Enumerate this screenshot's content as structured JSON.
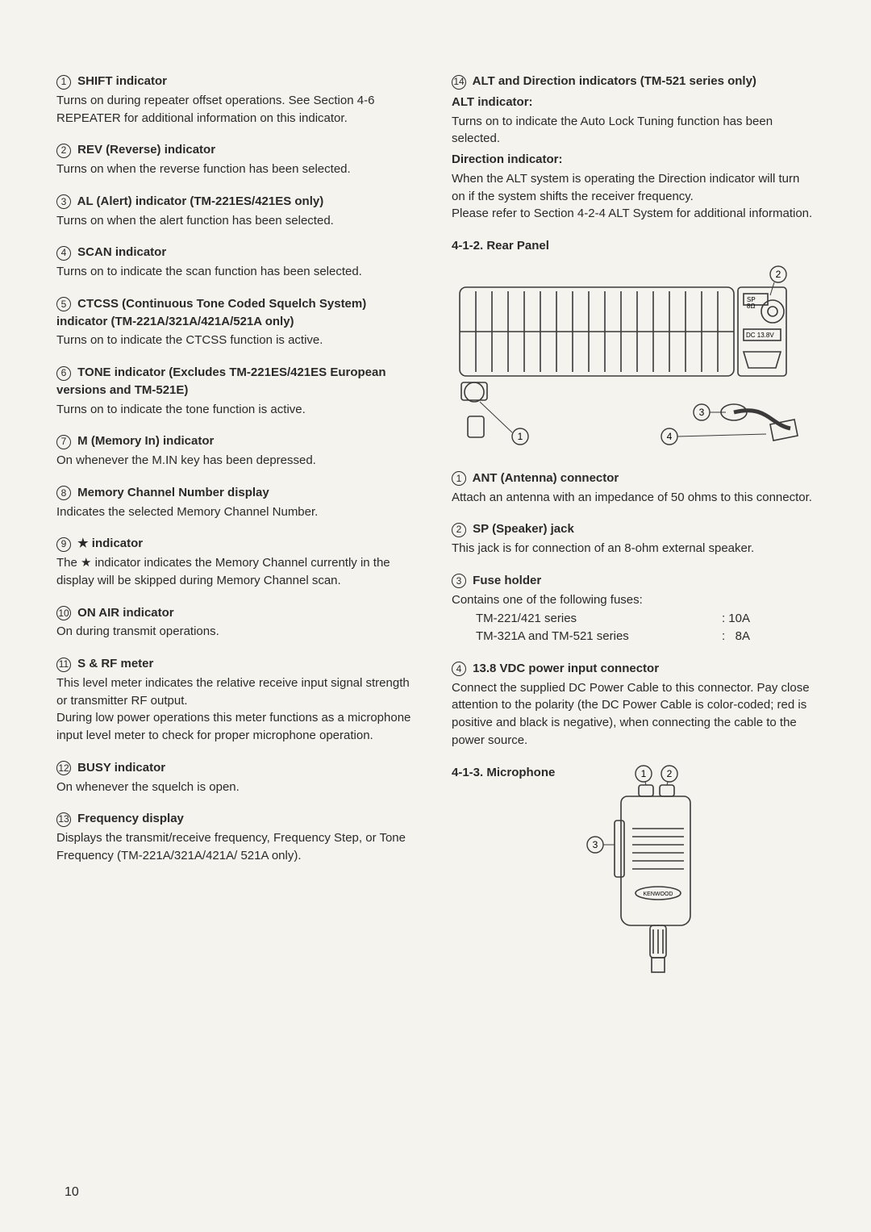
{
  "left": {
    "items": [
      {
        "num": "1",
        "title": "SHIFT indicator",
        "desc": "Turns on during repeater offset operations. See Section 4-6 REPEATER for additional information on this indicator."
      },
      {
        "num": "2",
        "title": "REV (Reverse) indicator",
        "desc": "Turns on when the reverse function has been selected."
      },
      {
        "num": "3",
        "title": "AL (Alert) indicator (TM-221ES/421ES only)",
        "desc": "Turns on when the alert function has been selected."
      },
      {
        "num": "4",
        "title": "SCAN indicator",
        "desc": "Turns on to indicate the scan function has been selected."
      },
      {
        "num": "5",
        "title": "CTCSS (Continuous Tone Coded Squelch System) indicator (TM-221A/321A/421A/521A only)",
        "desc": "Turns on to indicate the CTCSS function is active."
      },
      {
        "num": "6",
        "title": "TONE indicator (Excludes TM-221ES/421ES European versions and TM-521E)",
        "desc": "Turns on to indicate the tone function is active."
      },
      {
        "num": "7",
        "title": "M (Memory In) indicator",
        "desc": "On whenever the M.IN key has been depressed."
      },
      {
        "num": "8",
        "title": "Memory Channel Number display",
        "desc": "Indicates the selected Memory Channel Number."
      },
      {
        "num": "9",
        "title": "★ indicator",
        "desc": "The ★ indicator indicates the Memory Channel currently in the display will be skipped during Memory Channel scan."
      },
      {
        "num": "10",
        "title": "ON AIR indicator",
        "desc": "On during transmit operations."
      },
      {
        "num": "11",
        "title": "S & RF meter",
        "desc": "This level meter indicates the relative receive input signal strength or transmitter RF output.\nDuring low power operations this meter functions as a microphone input level meter to check for proper microphone operation."
      },
      {
        "num": "12",
        "title": "BUSY indicator",
        "desc": "On whenever the squelch is open."
      },
      {
        "num": "13",
        "title": "Frequency display",
        "desc": "Displays the transmit/receive frequency, Frequency Step, or Tone Frequency (TM-221A/321A/421A/ 521A only)."
      }
    ]
  },
  "right": {
    "item14": {
      "num": "14",
      "title": "ALT and Direction indicators (TM-521 series only)",
      "alt_head": "ALT indicator:",
      "alt_desc": "Turns on to indicate the Auto Lock Tuning function has been selected.",
      "dir_head": "Direction indicator:",
      "dir_desc": "When the ALT system is operating the Direction indicator will turn on if the system shifts the receiver frequency.\nPlease refer to Section 4-2-4 ALT System for additional information."
    },
    "rear": {
      "heading": "4-1-2. Rear Panel",
      "labels": {
        "sp": "SP",
        "ohm": "8Ω",
        "dc": "DC 13.8V"
      },
      "callouts": [
        "1",
        "2",
        "3",
        "4"
      ],
      "items": [
        {
          "num": "1",
          "title": "ANT (Antenna) connector",
          "desc": "Attach an antenna with an impedance of 50 ohms to this connector."
        },
        {
          "num": "2",
          "title": "SP (Speaker) jack",
          "desc": "This jack is for connection of an 8-ohm external speaker."
        },
        {
          "num": "3",
          "title": "Fuse holder",
          "desc_pre": "Contains one of the following fuses:",
          "fuses": [
            {
              "model": "TM-221/421 series",
              "rating": ": 10A"
            },
            {
              "model": "TM-321A and TM-521 series",
              "rating": ":   8A"
            }
          ]
        },
        {
          "num": "4",
          "title": "13.8 VDC power input connector",
          "desc": "Connect the supplied DC Power Cable to this connector. Pay close attention to the polarity (the DC Power Cable is color-coded; red is positive and black is negative), when connecting the cable to the power source."
        }
      ]
    },
    "mic": {
      "heading": "4-1-3. Microphone",
      "callouts": [
        "1",
        "2",
        "3"
      ],
      "brand": "KENWOOD"
    }
  },
  "pagenum": "10",
  "colors": {
    "text": "#2a2a2a",
    "bg": "#f5f3ee",
    "line": "#3a3a3a"
  }
}
